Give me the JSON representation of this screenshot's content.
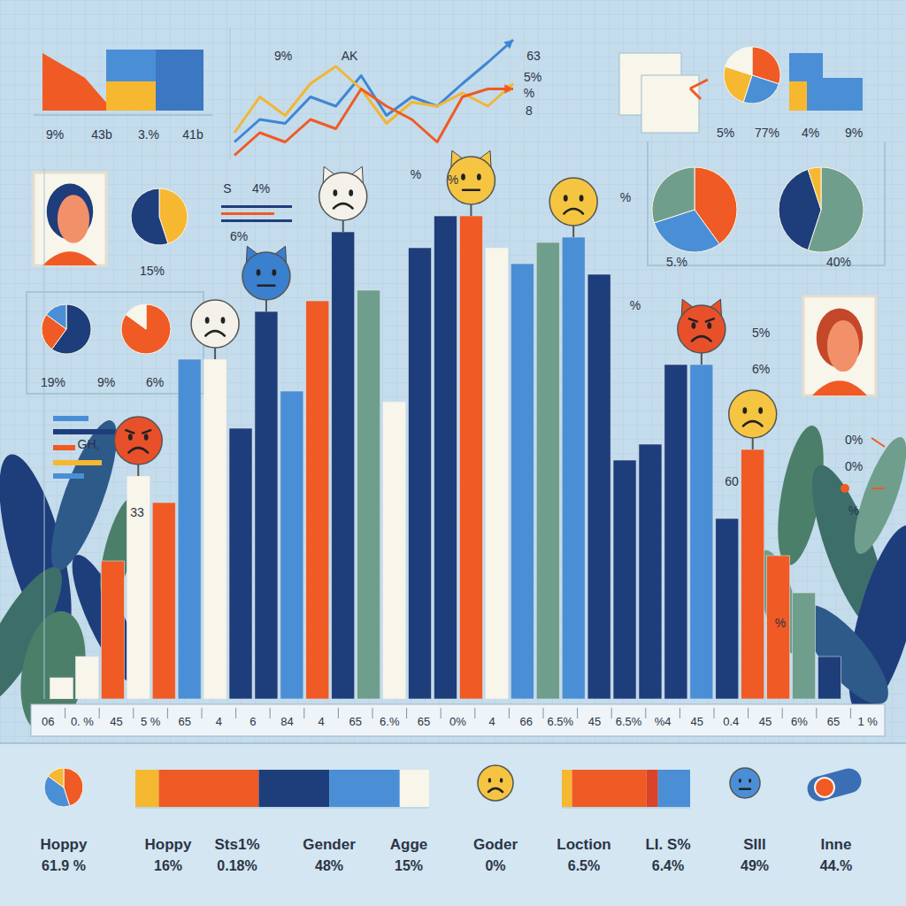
{
  "chart_data": [
    {
      "type": "bar",
      "categories": [
        null,
        null,
        null,
        null,
        null,
        null,
        null,
        null,
        null,
        null,
        null,
        null,
        null,
        null,
        null,
        null,
        null,
        null,
        null,
        null,
        null,
        null,
        null,
        null,
        null,
        null,
        null,
        null,
        null,
        null,
        null
      ],
      "values": [
        4,
        8,
        26,
        42,
        37,
        64,
        64,
        51,
        73,
        58,
        75,
        88,
        77,
        56,
        85,
        91,
        91,
        85,
        82,
        86,
        87,
        80,
        45,
        48,
        63,
        63,
        34,
        47,
        27,
        20,
        8
      ],
      "colors": [
        "#f8f5ea",
        "#f8f5ea",
        "#f05a24",
        "#f8f5ea",
        "#f05a24",
        "#4a8fd6",
        "#f8f5ea",
        "#1e3d7b",
        "#1e3d7b",
        "#4a8fd6",
        "#f05a24",
        "#1e3d7b",
        "#6f9e8c",
        "#f8f5ea",
        "#1e3d7b",
        "#1e3d7b",
        "#f05a24",
        "#f8f5ea",
        "#4a8fd6",
        "#6f9e8c",
        "#4a8fd6",
        "#1e3d7b",
        "#1e3d7b",
        "#1e3d7b",
        "#1e3d7b",
        "#4a8fd6",
        "#1e3d7b",
        "#f05a24",
        "#f05a24",
        "#6f9e8c",
        "#1e3d7b"
      ],
      "ylim": [
        0,
        100
      ],
      "tick_labels": false,
      "annotations": [
        "06",
        "0. %",
        "45",
        "5 %",
        "65",
        "4",
        "6",
        "84",
        "4",
        "65",
        "6.%",
        "65",
        "0%",
        "4",
        "66",
        "6.5%",
        "45",
        "6.5%",
        "%4",
        "45",
        "0.4",
        "45",
        "6%",
        "65",
        "1 %"
      ]
    },
    {
      "type": "line",
      "categories": [
        null,
        null,
        null,
        null,
        null,
        null,
        null,
        null,
        null,
        null,
        null,
        null
      ],
      "series": [
        {
          "color": "#3f86d4",
          "values": [
            13,
            30,
            27,
            47,
            40,
            63,
            33,
            47,
            40,
            57,
            73,
            90
          ]
        },
        {
          "color": "#f2b632",
          "values": [
            20,
            47,
            33,
            57,
            70,
            53,
            27,
            43,
            40,
            50,
            40,
            57
          ]
        },
        {
          "color": "#f05a24",
          "values": [
            3,
            20,
            13,
            30,
            23,
            53,
            40,
            30,
            13,
            47,
            53,
            53
          ]
        }
      ],
      "ylim": [
        0,
        100
      ],
      "tick_labels": false
    },
    {
      "type": "pie",
      "values": [
        45,
        55
      ],
      "colors": [
        "#f6b731",
        "#1e3d7b"
      ]
    },
    {
      "type": "pie",
      "values": [
        60,
        25,
        15
      ],
      "colors": [
        "#1e3d7b",
        "#f05a24",
        "#4a8fd6"
      ]
    },
    {
      "type": "pie",
      "values": [
        85,
        15
      ],
      "colors": [
        "#f05a24",
        "#f8f5ea"
      ]
    },
    {
      "type": "pie",
      "values": [
        30,
        25,
        25,
        20
      ],
      "colors": [
        "#f05a24",
        "#4a8fd6",
        "#f6b731",
        "#f8f5ea"
      ]
    },
    {
      "type": "pie",
      "values": [
        40,
        30,
        30
      ],
      "colors": [
        "#f05a24",
        "#4a8fd6",
        "#6f9e8c"
      ]
    },
    {
      "type": "pie",
      "values": [
        55,
        40,
        5
      ],
      "colors": [
        "#6f9e8c",
        "#1e3d7b",
        "#f6b731"
      ]
    },
    {
      "type": "pie",
      "values": [
        45,
        40,
        15
      ],
      "colors": [
        "#f05a24",
        "#4a8fd6",
        "#f6b731"
      ]
    },
    {
      "type": "bar",
      "orientation": "horizontal",
      "stacked": true,
      "categories": [
        null
      ],
      "series": [
        {
          "color": "#f6b731",
          "values": [
            8
          ]
        },
        {
          "color": "#f05a24",
          "values": [
            34
          ]
        },
        {
          "color": "#1e3d7b",
          "values": [
            24
          ]
        },
        {
          "color": "#4a8fd6",
          "values": [
            24
          ]
        },
        {
          "color": "#f8f5ea",
          "values": [
            10
          ]
        }
      ],
      "xlim": [
        0,
        100
      ],
      "tick_labels": false
    },
    {
      "type": "bar",
      "orientation": "horizontal",
      "stacked": true,
      "categories": [
        null
      ],
      "series": [
        {
          "color": "#f6b731",
          "values": [
            8
          ]
        },
        {
          "color": "#f05a24",
          "values": [
            58
          ]
        },
        {
          "color": "#d9432a",
          "values": [
            9
          ]
        },
        {
          "color": "#4a8fd6",
          "values": [
            25
          ]
        }
      ],
      "xlim": [
        0,
        100
      ],
      "tick_labels": false
    }
  ],
  "texts": [
    "9%",
    "43b",
    "3.%",
    "41b",
    "9%",
    "AK",
    "63",
    "5%",
    "%",
    "8",
    "5%",
    "77%",
    "4%",
    "9%",
    "S",
    "4%",
    "6%",
    "15%",
    "%",
    "%",
    "%",
    "%",
    "5.%",
    "40%",
    "19%",
    "9%",
    "6%",
    "5%",
    "6%",
    "60",
    "33",
    "%",
    "0%",
    "0%",
    "%",
    "GH,"
  ],
  "footer": [
    {
      "label": "Hoppy",
      "value": "61.9 %"
    },
    {
      "label": "Hoppy",
      "value": "16%"
    },
    {
      "label": "Sts1%",
      "value": "0.18%"
    },
    {
      "label": "Gender",
      "value": "48%"
    },
    {
      "label": "Agge",
      "value": "15%"
    },
    {
      "label": "Goder",
      "value": "0%"
    },
    {
      "label": "Loction",
      "value": "6.5%"
    },
    {
      "label": "LI. S%",
      "value": "6.4%"
    },
    {
      "label": "SIll",
      "value": "49%"
    },
    {
      "label": "Inne",
      "value": "44.%"
    }
  ]
}
